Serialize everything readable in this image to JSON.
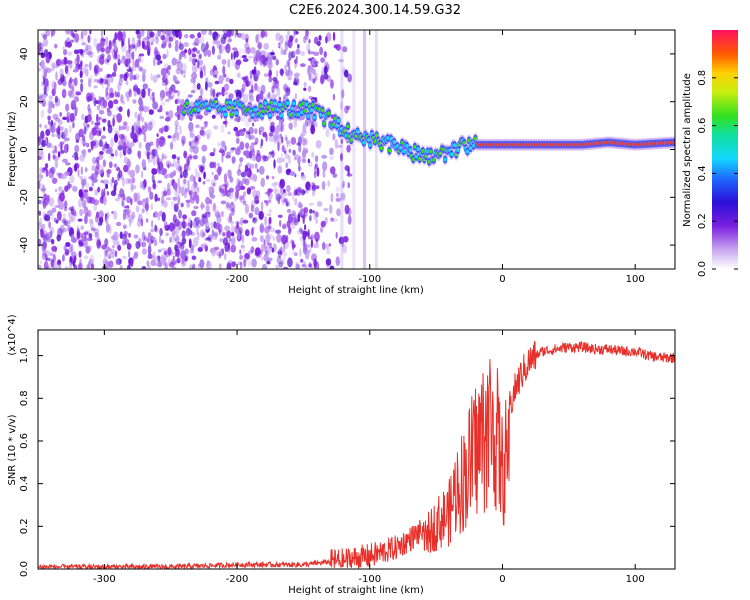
{
  "title": "C2E6.2024.300.14.59.G32",
  "chart_data": [
    {
      "type": "heatmap",
      "xlabel": "Height of straight line (km)",
      "ylabel": "Frequency (Hz)",
      "xlim": [
        -350,
        130
      ],
      "ylim": [
        -50,
        50
      ],
      "xticks": [
        -300,
        -200,
        -100,
        0,
        100
      ],
      "yticks": [
        -40,
        -20,
        0,
        20,
        40
      ],
      "colorbar": {
        "label": "Normalized spectral amplitude",
        "range": [
          0,
          1
        ],
        "ticks": [
          0.0,
          0.2,
          0.4,
          0.6,
          0.8
        ]
      },
      "ridge": {
        "x": [
          -240,
          -200,
          -160,
          -140,
          -120,
          -100,
          -80,
          -60,
          -50,
          -40,
          -20,
          0,
          20,
          40,
          60,
          80,
          100,
          130
        ],
        "y": [
          17,
          17,
          17,
          16,
          8,
          4,
          2,
          -3,
          -4,
          0,
          2,
          2,
          2,
          2,
          2,
          3,
          2,
          3
        ]
      }
    },
    {
      "type": "line",
      "xlabel": "Height of straight line (km)",
      "ylabel": "SNR (10 * v/v)",
      "y_multiplier": "(x10^4)",
      "xlim": [
        -350,
        130
      ],
      "ylim": [
        0,
        1.12
      ],
      "xticks": [
        -300,
        -200,
        -100,
        0,
        100
      ],
      "yticks": [
        0.0,
        0.2,
        0.4,
        0.6,
        0.8,
        1.0
      ],
      "series": [
        {
          "color": "#e8302a",
          "x": [
            -350,
            -300,
            -250,
            -200,
            -150,
            -120,
            -100,
            -80,
            -70,
            -60,
            -50,
            -40,
            -35,
            -30,
            -25,
            -20,
            -15,
            -10,
            -5,
            0,
            5,
            10,
            15,
            20,
            25,
            30,
            40,
            50,
            60,
            70,
            80,
            90,
            100,
            110,
            120,
            130
          ],
          "y": [
            0.01,
            0.01,
            0.01,
            0.02,
            0.02,
            0.04,
            0.06,
            0.1,
            0.14,
            0.18,
            0.28,
            0.35,
            0.5,
            0.55,
            0.65,
            0.75,
            0.82,
            0.9,
            0.85,
            0.6,
            0.75,
            0.85,
            0.92,
            0.97,
            1.0,
            1.02,
            1.03,
            1.04,
            1.04,
            1.03,
            1.03,
            1.02,
            1.02,
            1.0,
            0.99,
            0.99
          ]
        }
      ]
    }
  ]
}
